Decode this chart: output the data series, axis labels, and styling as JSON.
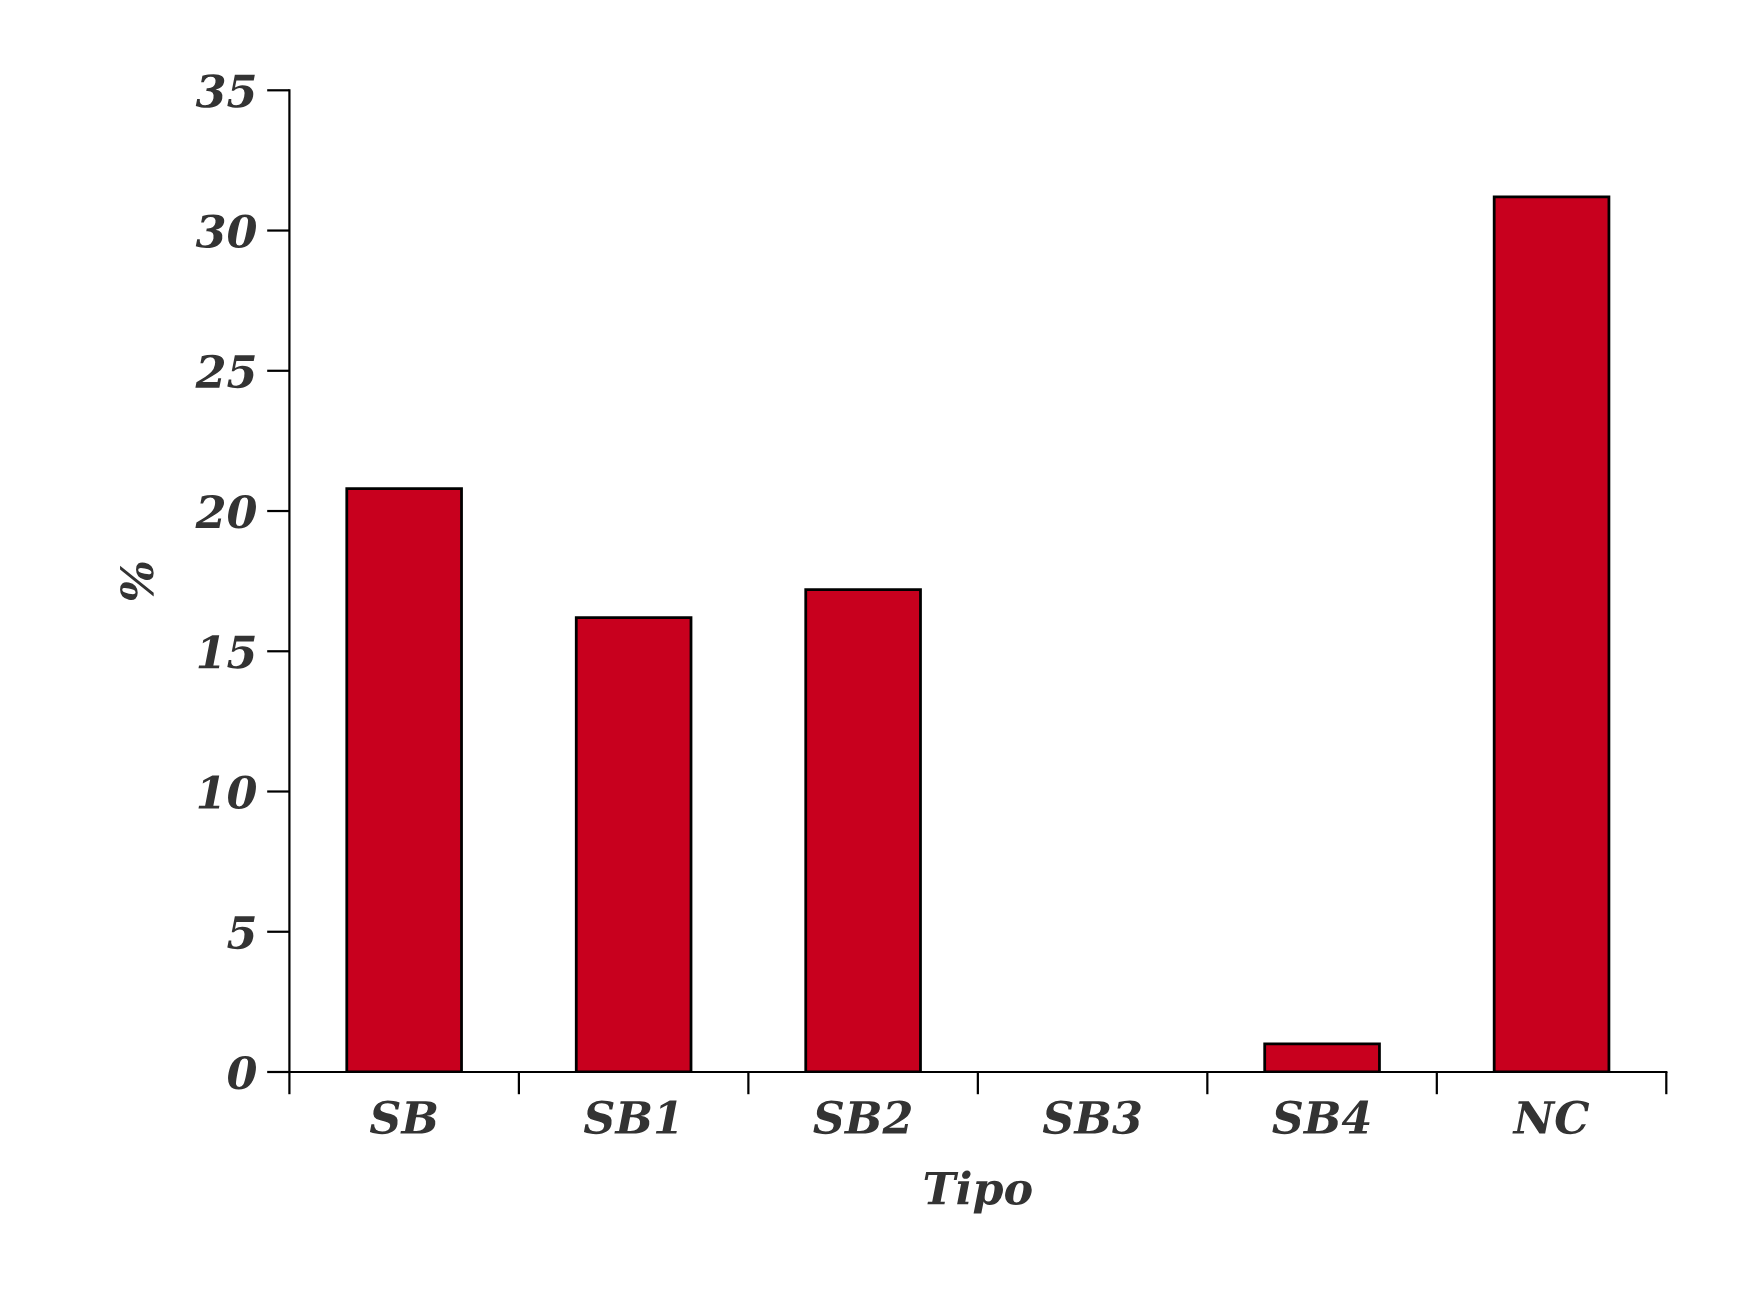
{
  "chart_data": {
    "type": "bar",
    "xlabel": "Tipo",
    "ylabel": "%",
    "categories": [
      "SB",
      "SB1",
      "SB2",
      "SB3",
      "SB4",
      "NC"
    ],
    "values": [
      20.8,
      16.2,
      17.2,
      0,
      1.0,
      31.2
    ],
    "color": "#c8001e",
    "ylim": [
      0,
      35
    ],
    "yticks": [
      0,
      5,
      10,
      15,
      20,
      25,
      30,
      35
    ],
    "grid": false,
    "legend": false
  }
}
